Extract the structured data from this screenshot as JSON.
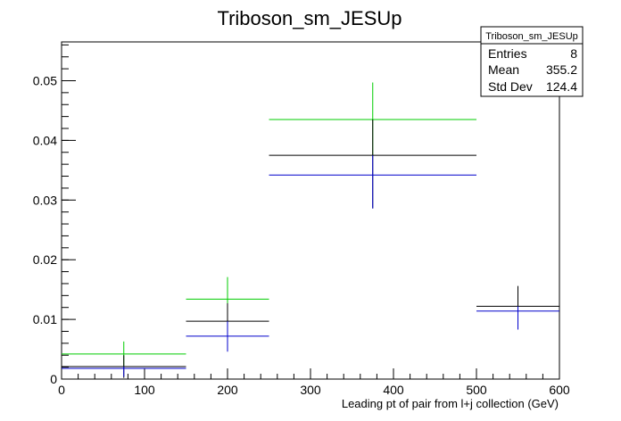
{
  "chart_data": {
    "type": "scatter",
    "title": "Triboson_sm_JESUp",
    "xlabel": "Leading pt of pair from l+j collection (GeV)",
    "ylabel": "",
    "xlim": [
      0,
      600
    ],
    "ylim": [
      0,
      0.0565
    ],
    "x_ticks": [
      0,
      100,
      200,
      300,
      400,
      500,
      600
    ],
    "y_ticks": [
      0,
      0.01,
      0.02,
      0.03,
      0.04,
      0.05
    ],
    "grid": false,
    "stats_box": {
      "name": "Triboson_sm_JESUp",
      "rows": [
        {
          "label": "Entries",
          "value": "8"
        },
        {
          "label": "Mean",
          "value": "355.2"
        },
        {
          "label": "Std Dev",
          "value": "124.4"
        }
      ]
    },
    "series": [
      {
        "color": "#00cc00",
        "bins": [
          {
            "xlo": 0,
            "xhi": 150,
            "x": 75,
            "y": 0.0042,
            "ylo": 0.0021,
            "yhi": 0.0063
          },
          {
            "xlo": 150,
            "xhi": 250,
            "x": 200,
            "y": 0.0134,
            "ylo": 0.0097,
            "yhi": 0.0171
          },
          {
            "xlo": 250,
            "xhi": 500,
            "x": 375,
            "y": 0.0435,
            "ylo": 0.0374,
            "yhi": 0.0497
          }
        ]
      },
      {
        "color": "#000000",
        "bins": [
          {
            "xlo": 0,
            "xhi": 150,
            "x": 75,
            "y": 0.0021,
            "ylo": 0.0002,
            "yhi": 0.004
          },
          {
            "xlo": 150,
            "xhi": 250,
            "x": 200,
            "y": 0.0097,
            "ylo": 0.0067,
            "yhi": 0.0127
          },
          {
            "xlo": 250,
            "xhi": 500,
            "x": 375,
            "y": 0.0375,
            "ylo": 0.0286,
            "yhi": 0.0435
          },
          {
            "xlo": 500,
            "xhi": 600,
            "x": 550,
            "y": 0.0122,
            "ylo": 0.0083,
            "yhi": 0.0156
          }
        ]
      },
      {
        "color": "#0000cc",
        "bins": [
          {
            "xlo": 0,
            "xhi": 150,
            "x": 75,
            "y": 0.0018,
            "ylo": 0.0004,
            "yhi": 0.0021
          },
          {
            "xlo": 150,
            "xhi": 250,
            "x": 200,
            "y": 0.0072,
            "ylo": 0.0046,
            "yhi": 0.0097
          },
          {
            "xlo": 250,
            "xhi": 500,
            "x": 375,
            "y": 0.0342,
            "ylo": 0.0286,
            "yhi": 0.0375
          },
          {
            "xlo": 500,
            "xhi": 600,
            "x": 550,
            "y": 0.0114,
            "ylo": 0.0083,
            "yhi": 0.0122
          }
        ]
      }
    ]
  }
}
